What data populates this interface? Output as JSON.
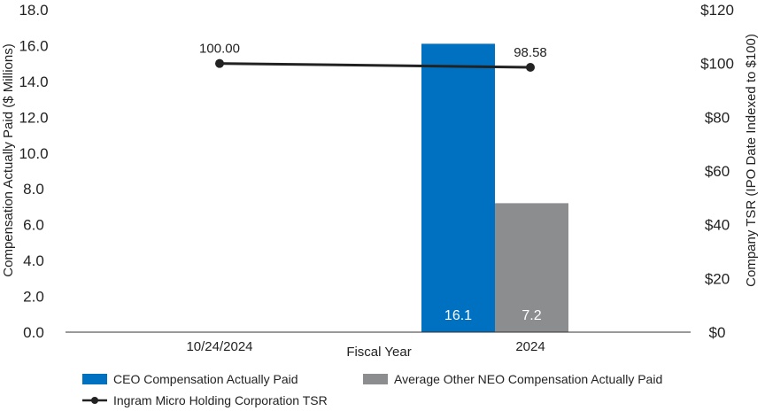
{
  "chart_data": {
    "type": "bar+line",
    "xlabel": "Fiscal Year",
    "categories": [
      "10/24/2024",
      "2024"
    ],
    "y_left": {
      "label": "Compensation Actually Paid ($ Millions)",
      "ylim": [
        0,
        18
      ],
      "ticks": [
        "0.0",
        "2.0",
        "4.0",
        "6.0",
        "8.0",
        "10.0",
        "12.0",
        "14.0",
        "16.0",
        "18.0"
      ]
    },
    "y_right": {
      "label": "Company TSR (IPO Date Indexed to $100)",
      "ylim": [
        0,
        120
      ],
      "ticks": [
        "$0",
        "$20",
        "$40",
        "$60",
        "$80",
        "$100",
        "$120"
      ]
    },
    "bar_series": [
      {
        "name": "CEO Compensation Actually Paid",
        "color": "#0070c0",
        "values": [
          null,
          16.1
        ],
        "labels": [
          null,
          "16.1"
        ]
      },
      {
        "name": "Average Other NEO Compensation Actually Paid",
        "color": "#8c8d8f",
        "values": [
          null,
          7.2
        ],
        "labels": [
          null,
          "7.2"
        ]
      }
    ],
    "line_series": {
      "name": "Ingram Micro Holding Corporation TSR",
      "color": "#222222",
      "values": [
        100.0,
        98.58
      ],
      "labels": [
        "100.00",
        "98.58"
      ]
    },
    "legend_position": "bottom"
  }
}
